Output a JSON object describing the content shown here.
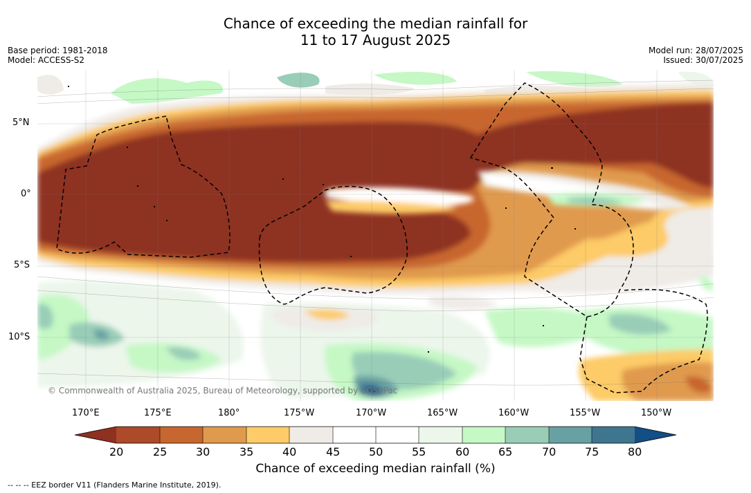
{
  "header": {
    "title_line1": "Chance of exceeding the median rainfall for",
    "title_line2": "11 to 17 August 2025",
    "base_period": "Base period: 1981-2018",
    "model": "Model: ACCESS-S2",
    "model_run": "Model run: 28/07/2025",
    "issued": "Issued: 30/07/2025"
  },
  "map": {
    "copyright": "© Commonwealth of Australia 2025, Bureau of Meteorology, supported by COSPPac",
    "lat_labels": [
      "5°N",
      "0°",
      "5°S",
      "10°S"
    ],
    "lon_labels": [
      "170°E",
      "175°E",
      "180°",
      "175°W",
      "170°W",
      "165°W",
      "160°W",
      "155°W",
      "150°W"
    ],
    "eez_note": "--  --  -- EEZ border V11 (Flanders Marine Institute, 2019)."
  },
  "colorbar": {
    "label": "Chance of exceeding median rainfall (%)",
    "ticks": [
      "20",
      "25",
      "30",
      "35",
      "40",
      "45",
      "50",
      "55",
      "60",
      "65",
      "70",
      "75",
      "80"
    ],
    "colors": {
      "under": "#8e3120",
      "c20_25": "#ac4a2a",
      "c25_30": "#c8662f",
      "c30_35": "#e09a4d",
      "c35_40": "#fdcb67",
      "c40_45": "#efebe7",
      "c45_50": "#ffffff",
      "c50_55": "#ffffff",
      "c55_60": "#ecf6eb",
      "c60_65": "#c5f8c5",
      "c65_70": "#99cdb7",
      "c70_75": "#67a1a3",
      "c75_80": "#3f768f",
      "over": "#134e84"
    }
  }
}
